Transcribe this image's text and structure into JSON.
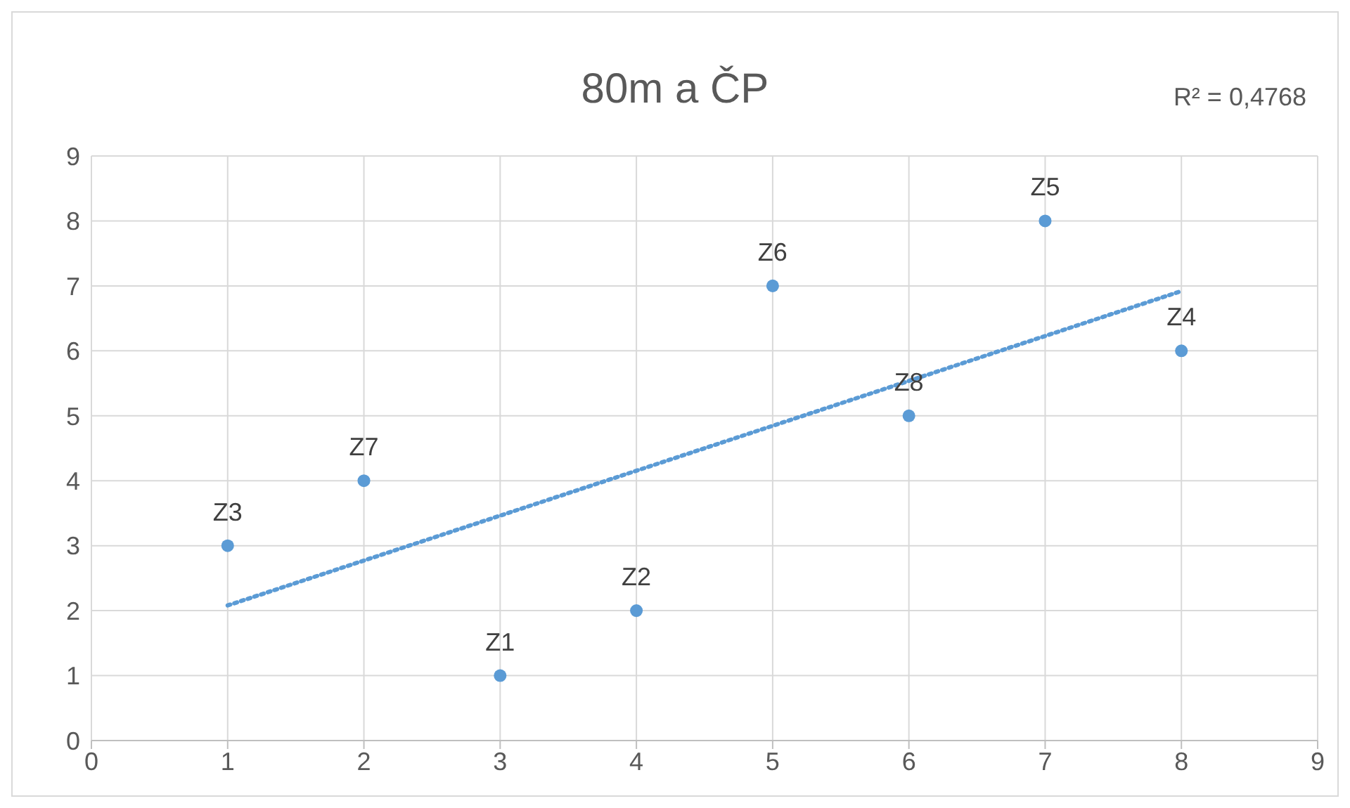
{
  "chart_data": {
    "type": "scatter",
    "title": "80m a ČP",
    "x": [
      1,
      2,
      3,
      4,
      5,
      6,
      7,
      8
    ],
    "series": [
      {
        "type": "scatter",
        "color": "#5b9bd5",
        "values": [
          3,
          4,
          1,
          2,
          7,
          5,
          8,
          6
        ]
      },
      {
        "type": "line",
        "color": "#5b9bd5",
        "x": [
          1,
          8
        ],
        "values": [
          2.08,
          6.92
        ],
        "line_style": "dotted",
        "marker": "none"
      }
    ],
    "annotations": [
      "R² = 0,4768",
      {
        "text": "Z3",
        "x": 1,
        "y": 3
      },
      {
        "text": "Z7",
        "x": 2,
        "y": 4
      },
      {
        "text": "Z1",
        "x": 3,
        "y": 1
      },
      {
        "text": "Z2",
        "x": 4,
        "y": 2
      },
      {
        "text": "Z6",
        "x": 5,
        "y": 7
      },
      {
        "text": "Z8",
        "x": 6,
        "y": 5
      },
      {
        "text": "Z5",
        "x": 7,
        "y": 8
      },
      {
        "text": "Z4",
        "x": 8,
        "y": 6
      }
    ],
    "xlim": [
      0,
      9
    ],
    "xticks": [
      0,
      1,
      2,
      3,
      4,
      5,
      6,
      7,
      8,
      9
    ],
    "ylim": [
      0,
      9
    ],
    "yticks": [
      0,
      1,
      2,
      3,
      4,
      5,
      6,
      7,
      8,
      9
    ],
    "grid": true,
    "marker": "circle",
    "legend": false
  }
}
